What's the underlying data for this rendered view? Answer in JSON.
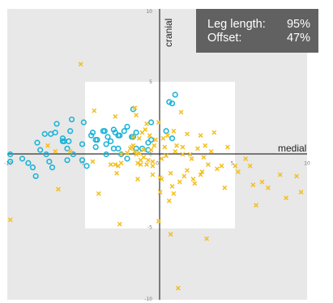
{
  "chart_data": {
    "type": "scatter",
    "xlim": [
      -10,
      10
    ],
    "ylim": [
      -10,
      10
    ],
    "x_ticks": [
      -10,
      -5,
      0,
      5,
      10
    ],
    "y_ticks": [
      -10,
      -5,
      0,
      5,
      10
    ],
    "xlabel": "medial",
    "ylabel": "cranial",
    "grid": false,
    "zones": {
      "inner_square": [
        -5,
        5
      ],
      "background": "#e8e8e8",
      "inner": "#ffffff"
    },
    "series": [
      {
        "marker": "circle-open",
        "color": "#1cb3d6",
        "points": [
          [
            -9.8,
            0.0
          ],
          [
            -9.8,
            -0.5
          ],
          [
            -9.0,
            -0.3
          ],
          [
            -8.6,
            -0.6
          ],
          [
            -8.3,
            -0.9
          ],
          [
            -8.1,
            -1.5
          ],
          [
            -8.0,
            0.8
          ],
          [
            -7.5,
            1.4
          ],
          [
            -7.4,
            0.0
          ],
          [
            -7.2,
            -0.5
          ],
          [
            -7.0,
            -0.9
          ],
          [
            -6.8,
            1.5
          ],
          [
            -6.7,
            2.1
          ],
          [
            -6.3,
            1.1
          ],
          [
            -6.2,
            0.9
          ],
          [
            -6.0,
            0.4
          ],
          [
            -5.9,
            0.9
          ],
          [
            -5.8,
            1.6
          ],
          [
            -5.7,
            2.4
          ],
          [
            -5.0,
            0.7
          ],
          [
            -5.0,
            -0.4
          ],
          [
            -4.7,
            -0.8
          ],
          [
            -4.4,
            1.3
          ],
          [
            -4.1,
            1.0
          ],
          [
            -4.1,
            0.5
          ],
          [
            -4.0,
            1.0
          ],
          [
            -3.6,
            1.6
          ],
          [
            -3.4,
            0.7
          ],
          [
            -3.1,
            0.9
          ],
          [
            -2.9,
            0.4
          ],
          [
            -2.6,
            0.4
          ],
          [
            -2.6,
            1.3
          ],
          [
            -2.5,
            1.3
          ],
          [
            -2.2,
            1.6
          ],
          [
            -2.0,
            -0.3
          ],
          [
            -1.4,
            1.5
          ],
          [
            -1.0,
            0.4
          ],
          [
            -0.6,
            0.8
          ],
          [
            -1.6,
            1.2
          ],
          [
            -0.6,
            0.3
          ],
          [
            -1.4,
            0.4
          ],
          [
            -2.9,
            1.7
          ],
          [
            -2.0,
            1.9
          ],
          [
            -0.4,
            1.0
          ],
          [
            1.0,
            3.5
          ],
          [
            1.0,
            1.1
          ],
          [
            -4.9,
            2.2
          ],
          [
            -4.3,
            1.5
          ],
          [
            -3.5,
            1.6
          ],
          [
            -6.0,
            -0.4
          ],
          [
            -7.1,
            1.4
          ],
          [
            -7.8,
            0.3
          ],
          [
            0.8,
            3.6
          ],
          [
            0.6,
            1.6
          ],
          [
            -0.4,
            2.2
          ],
          [
            -6.3,
            0.9
          ],
          [
            -5.6,
            0.0
          ],
          [
            -3.4,
            0.0
          ],
          [
            -2.4,
            0.0
          ],
          [
            1.2,
            4.1
          ],
          [
            -2.8,
            1.5
          ],
          [
            -1.7,
            1.2
          ],
          [
            -3.3,
            1.2
          ],
          [
            -1.6,
            3.1
          ]
        ]
      },
      {
        "marker": "x",
        "color": "#f3bf1d",
        "points": [
          [
            -5.1,
            6.2
          ],
          [
            -4.2,
            3.0
          ],
          [
            -2.8,
            2.6
          ],
          [
            -1.5,
            3.2
          ],
          [
            -1.3,
            -1.7
          ],
          [
            -1.1,
            -0.4
          ],
          [
            -0.7,
            -0.7
          ],
          [
            -0.5,
            1.3
          ],
          [
            -0.4,
            0.3
          ],
          [
            -0.3,
            -0.8
          ],
          [
            -0.1,
            1.0
          ],
          [
            0.1,
            2.2
          ],
          [
            0.2,
            -2.6
          ],
          [
            0.3,
            -1.7
          ],
          [
            0.4,
            1.1
          ],
          [
            0.5,
            0.5
          ],
          [
            0.6,
            -0.1
          ],
          [
            0.7,
            1.3
          ],
          [
            0.8,
            -3.2
          ],
          [
            0.9,
            -1.3
          ],
          [
            1.0,
            -2.2
          ],
          [
            1.1,
            1.6
          ],
          [
            1.3,
            0.6
          ],
          [
            1.5,
            -1.9
          ],
          [
            1.6,
            2.9
          ],
          [
            1.7,
            0.5
          ],
          [
            2.0,
            -1.1
          ],
          [
            2.2,
            0.0
          ],
          [
            2.3,
            -0.3
          ],
          [
            2.4,
            -1.7
          ],
          [
            2.5,
            -2.0
          ],
          [
            2.7,
            0.4
          ],
          [
            2.9,
            1.3
          ],
          [
            3.0,
            -1.2
          ],
          [
            3.2,
            0.6
          ],
          [
            3.4,
            -0.7
          ],
          [
            3.6,
            0.2
          ],
          [
            3.8,
            1.5
          ],
          [
            4.0,
            -1.0
          ],
          [
            4.3,
            -0.8
          ],
          [
            4.5,
            -2.3
          ],
          [
            4.7,
            0.5
          ],
          [
            5.2,
            -0.8
          ],
          [
            5.4,
            -1.2
          ],
          [
            5.9,
            -0.3
          ],
          [
            6.2,
            -0.8
          ],
          [
            6.4,
            -2.1
          ],
          [
            6.6,
            -3.5
          ],
          [
            7.0,
            -1.9
          ],
          [
            7.4,
            -2.3
          ],
          [
            8.2,
            -1.4
          ],
          [
            8.6,
            -3.0
          ],
          [
            9.3,
            -1.5
          ],
          [
            9.6,
            -2.6
          ],
          [
            -3.9,
            -2.7
          ],
          [
            -2.7,
            -1.3
          ],
          [
            -2.4,
            -0.6
          ],
          [
            -1.5,
            0.2
          ],
          [
            -1.2,
            0.1
          ],
          [
            -1.0,
            1.5
          ],
          [
            -0.8,
            1.7
          ],
          [
            -0.7,
            2.1
          ],
          [
            -0.2,
            0.6
          ],
          [
            -2.5,
            -4.8
          ],
          [
            0.1,
            -4.6
          ],
          [
            0.9,
            -5.5
          ],
          [
            1.4,
            -9.2
          ],
          [
            3.3,
            -5.8
          ],
          [
            -9.8,
            -4.5
          ],
          [
            -6.6,
            -2.4
          ],
          [
            -7.3,
            0.6
          ],
          [
            -6.8,
            0.2
          ],
          [
            -4.3,
            -0.5
          ],
          [
            2.9,
            -1.4
          ],
          [
            -1.6,
            1.2
          ],
          [
            -0.9,
            -0.2
          ],
          [
            -2.6,
            -0.8
          ],
          [
            -5.8,
            0.2
          ],
          [
            -2.8,
            -0.7
          ],
          [
            -1.2,
            1.1
          ],
          [
            -0.3,
            -0.5
          ],
          [
            -3.1,
            -0.7
          ],
          [
            -1.3,
            -0.6
          ],
          [
            -1.4,
            2.7
          ],
          [
            1.1,
            -2.7
          ],
          [
            3.1,
            -0.2
          ],
          [
            1.8,
            -1.5
          ],
          [
            -2.0,
            0.1
          ],
          [
            -0.6,
            -0.4
          ],
          [
            -1.8,
            0.4
          ],
          [
            -0.3,
            -1.4
          ],
          [
            -1.4,
            0.0
          ],
          [
            -1.7,
            0.5
          ],
          [
            0.2,
            -1.6
          ],
          [
            1.7,
            0.0
          ],
          [
            1.2,
            0.2
          ],
          [
            0.3,
            -0.3
          ],
          [
            2.0,
            1.4
          ],
          [
            -1.6,
            0.6
          ],
          [
            -0.9,
            0.3
          ],
          [
            -1.1,
            -0.7
          ],
          [
            -2.4,
            0.0
          ]
        ]
      }
    ]
  },
  "stats_box": {
    "rows": [
      {
        "label": "Leg length:",
        "value": "95%"
      },
      {
        "label": "Offset:",
        "value": "47%"
      }
    ]
  }
}
